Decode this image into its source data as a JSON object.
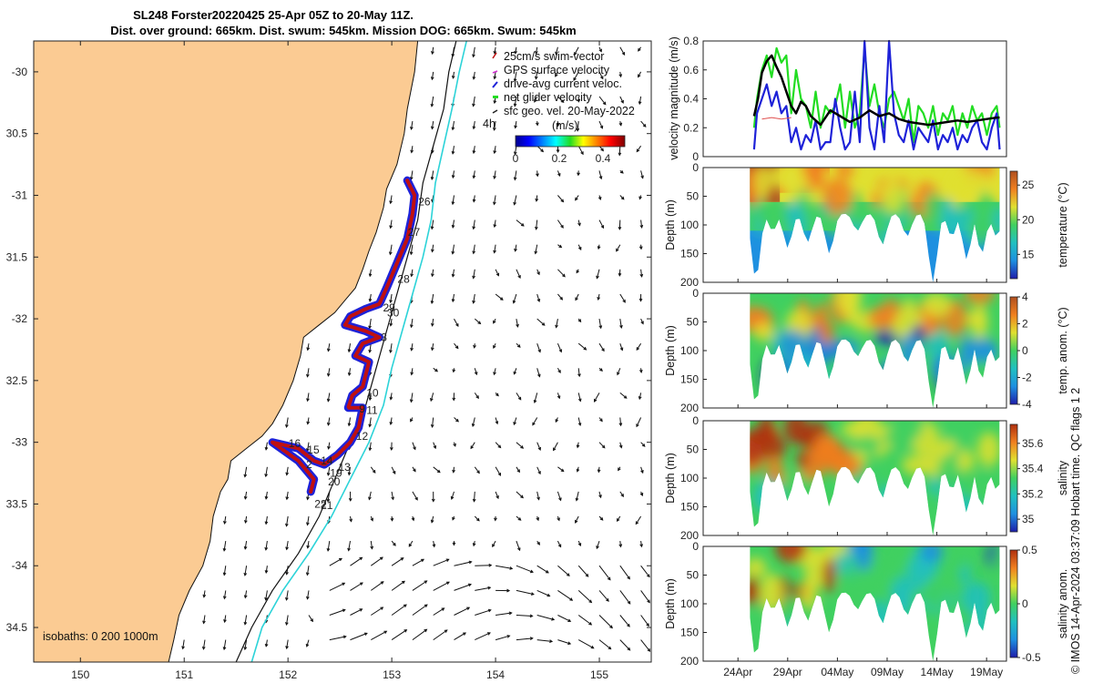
{
  "title_line1": "SL248 Forster20220425 25-Apr 05Z to 20-May 11Z.",
  "title_line2": "Dist. over ground: 665km. Dist. swum: 545km. Mission DOG: 665km. Swum: 545km",
  "side_text": "© IMOS 14-Apr-2024 03:37:09 Hobart time. QC flags 1  2",
  "colors": {
    "land": "#FBCB93",
    "swim_vector": "#C01010",
    "current": "#1E22D8",
    "net": "#22DD22",
    "isobath_1000": "#2CD3D8"
  },
  "chart_data": [
    {
      "type": "map",
      "name": "glider track map",
      "xlim": [
        149.55,
        155.5
      ],
      "ylim": [
        -34.78,
        -29.75
      ],
      "xticks": [
        150,
        151,
        152,
        153,
        154,
        155
      ],
      "yticks": [
        -30,
        -30.5,
        -31,
        -31.5,
        -32,
        -32.5,
        -33,
        -33.5,
        -34,
        -34.5
      ],
      "xtick_labels": [
        "150",
        "151",
        "152",
        "153",
        "154",
        "155"
      ],
      "ytick_labels": [
        "-30",
        "30.5",
        "-31",
        "31.5",
        "-32",
        "32.5",
        "-33",
        "33.5",
        "-34",
        "34.5"
      ],
      "legend": [
        "25cm/s swim-vector",
        "GPS surface velocity",
        "drive-avg current veloc.",
        "net glider velocity",
        "sfc geo. vel. 20-May-2022"
      ],
      "legend_position": "top-right",
      "legend_extra": "4h",
      "colorbar": {
        "label": "(m/s)",
        "ticks": [
          "0",
          "0.2",
          "0.4"
        ],
        "range": [
          0,
          0.5
        ]
      },
      "isobath_label": "isobaths: 0   200  1000m",
      "coast": [
        [
          153.25,
          -29.75
        ],
        [
          153.22,
          -30.0
        ],
        [
          153.15,
          -30.3
        ],
        [
          153.12,
          -30.5
        ],
        [
          153.05,
          -30.75
        ],
        [
          152.95,
          -30.95
        ],
        [
          152.92,
          -31.1
        ],
        [
          152.85,
          -31.3
        ],
        [
          152.78,
          -31.45
        ],
        [
          152.72,
          -31.6
        ],
        [
          152.65,
          -31.75
        ],
        [
          152.55,
          -31.85
        ],
        [
          152.45,
          -31.95
        ],
        [
          152.3,
          -32.05
        ],
        [
          152.15,
          -32.15
        ],
        [
          152.12,
          -32.3
        ],
        [
          152.05,
          -32.5
        ],
        [
          151.95,
          -32.7
        ],
        [
          151.85,
          -32.85
        ],
        [
          151.75,
          -32.95
        ],
        [
          151.6,
          -33.05
        ],
        [
          151.45,
          -33.15
        ],
        [
          151.42,
          -33.3
        ],
        [
          151.35,
          -33.4
        ],
        [
          151.28,
          -33.6
        ],
        [
          151.25,
          -33.8
        ],
        [
          151.18,
          -34.0
        ],
        [
          151.05,
          -34.2
        ],
        [
          150.95,
          -34.4
        ],
        [
          150.9,
          -34.6
        ],
        [
          150.85,
          -34.78
        ]
      ],
      "isobath_200m": [
        [
          153.62,
          -29.75
        ],
        [
          153.55,
          -30.0
        ],
        [
          153.5,
          -30.3
        ],
        [
          153.4,
          -30.6
        ],
        [
          153.3,
          -30.9
        ],
        [
          153.25,
          -31.2
        ],
        [
          153.15,
          -31.5
        ],
        [
          153.05,
          -31.8
        ],
        [
          152.95,
          -32.1
        ],
        [
          152.85,
          -32.4
        ],
        [
          152.75,
          -32.7
        ],
        [
          152.6,
          -33.0
        ],
        [
          152.45,
          -33.3
        ],
        [
          152.3,
          -33.6
        ],
        [
          152.1,
          -33.9
        ],
        [
          151.85,
          -34.2
        ],
        [
          151.65,
          -34.5
        ],
        [
          151.5,
          -34.78
        ]
      ],
      "isobath_1000m": [
        [
          153.72,
          -29.75
        ],
        [
          153.65,
          -30.0
        ],
        [
          153.58,
          -30.3
        ],
        [
          153.5,
          -30.6
        ],
        [
          153.42,
          -30.9
        ],
        [
          153.38,
          -31.2
        ],
        [
          153.3,
          -31.5
        ],
        [
          153.2,
          -31.8
        ],
        [
          153.1,
          -32.1
        ],
        [
          153.0,
          -32.4
        ],
        [
          152.92,
          -32.7
        ],
        [
          152.78,
          -33.0
        ],
        [
          152.6,
          -33.3
        ],
        [
          152.42,
          -33.6
        ],
        [
          152.2,
          -33.9
        ],
        [
          151.95,
          -34.2
        ],
        [
          151.75,
          -34.5
        ],
        [
          151.65,
          -34.78
        ]
      ],
      "track": [
        [
          153.15,
          -30.88
        ],
        [
          153.22,
          -31.0
        ],
        [
          153.2,
          -31.15
        ],
        [
          153.15,
          -31.35
        ],
        [
          153.05,
          -31.55
        ],
        [
          152.95,
          -31.75
        ],
        [
          152.88,
          -31.88
        ],
        [
          152.75,
          -31.92
        ],
        [
          152.6,
          -31.98
        ],
        [
          152.55,
          -32.05
        ],
        [
          152.75,
          -32.1
        ],
        [
          152.88,
          -32.15
        ],
        [
          152.72,
          -32.2
        ],
        [
          152.65,
          -32.3
        ],
        [
          152.78,
          -32.35
        ],
        [
          152.72,
          -32.55
        ],
        [
          152.62,
          -32.62
        ],
        [
          152.58,
          -32.72
        ],
        [
          152.72,
          -32.72
        ],
        [
          152.68,
          -32.88
        ],
        [
          152.6,
          -33.0
        ],
        [
          152.48,
          -33.1
        ],
        [
          152.35,
          -33.18
        ],
        [
          152.25,
          -33.15
        ],
        [
          152.1,
          -33.05
        ],
        [
          151.85,
          -33.0
        ],
        [
          152.1,
          -33.15
        ],
        [
          152.25,
          -33.3
        ],
        [
          152.22,
          -33.4
        ]
      ],
      "track_labels": [
        [
          "26",
          153.22,
          -31.05
        ],
        [
          "27",
          153.12,
          -31.3
        ],
        [
          "28",
          153.02,
          -31.68
        ],
        [
          "29",
          152.88,
          -31.91
        ],
        [
          "30",
          152.92,
          -31.95
        ],
        [
          "3",
          152.86,
          -32.15
        ],
        [
          "10",
          152.72,
          -32.6
        ],
        [
          "9",
          152.65,
          -32.73
        ],
        [
          "11",
          152.72,
          -32.74
        ],
        [
          "12",
          152.62,
          -32.95
        ],
        [
          "13",
          152.45,
          -33.2
        ],
        [
          "14",
          152.28,
          -33.15
        ],
        [
          "15",
          152.15,
          -33.06
        ],
        [
          "16",
          151.97,
          -33.01
        ],
        [
          "2",
          152.14,
          -33.18
        ],
        [
          "19",
          152.37,
          -33.25
        ],
        [
          "20",
          152.35,
          -33.32
        ],
        [
          "21",
          152.28,
          -33.51
        ],
        [
          "22",
          152.22,
          -33.5
        ]
      ]
    },
    {
      "type": "line",
      "name": "velocity magnitude",
      "ylabel": "velocity magnitude (m/s)",
      "ylim": [
        0,
        0.8
      ],
      "yticks": [
        "0",
        "0.2",
        "0.4",
        "0.6",
        "0.8"
      ],
      "xlim": [
        20.0,
        51.0
      ],
      "series": [
        {
          "color": "#22DD22",
          "x": [
            25.2,
            25.5,
            26,
            26.5,
            27,
            27.5,
            28,
            28.5,
            29,
            29.5,
            30,
            30.5,
            31,
            31.5,
            32,
            32.5,
            33,
            33.5,
            34,
            34.5,
            35,
            35.5,
            36,
            36.5,
            37,
            37.5,
            38,
            38.5,
            39,
            39.5,
            40,
            40.5,
            41,
            41.5,
            42,
            42.5,
            43,
            43.5,
            44,
            44.5,
            45,
            45.5,
            46,
            46.5,
            47,
            47.5,
            48,
            48.5,
            49,
            49.5,
            50,
            50.3
          ],
          "y": [
            0.2,
            0.4,
            0.6,
            0.7,
            0.55,
            0.75,
            0.65,
            0.7,
            0.3,
            0.6,
            0.4,
            0.35,
            0.2,
            0.45,
            0.2,
            0.35,
            0.3,
            0.35,
            0.5,
            0.2,
            0.45,
            0.2,
            0.3,
            0.75,
            0.35,
            0.5,
            0.3,
            0.2,
            0.4,
            0.45,
            0.35,
            0.25,
            0.4,
            0.1,
            0.35,
            0.3,
            0.2,
            0.35,
            0.15,
            0.3,
            0.25,
            0.35,
            0.15,
            0.3,
            0.2,
            0.35,
            0.25,
            0.3,
            0.15,
            0.3,
            0.35,
            0.2
          ]
        },
        {
          "color": "#1E22D8",
          "x": [
            25.2,
            25.5,
            26,
            26.5,
            27,
            27.5,
            28,
            28.5,
            29,
            29.5,
            30,
            30.5,
            31,
            31.5,
            32,
            32.5,
            33,
            33.5,
            34,
            34.5,
            35,
            35.5,
            36,
            36.5,
            37,
            37.5,
            38,
            38.5,
            39,
            39.5,
            40,
            40.5,
            41,
            41.5,
            42,
            42.5,
            43,
            43.5,
            44,
            44.5,
            45,
            45.5,
            46,
            46.5,
            47,
            47.5,
            48,
            48.5,
            49,
            49.5,
            50,
            50.3
          ],
          "y": [
            0.05,
            0.3,
            0.4,
            0.5,
            0.35,
            0.45,
            0.3,
            0.35,
            0.1,
            0.2,
            0.05,
            0.15,
            0.1,
            0.25,
            0.05,
            0.1,
            0.1,
            0.4,
            0.2,
            0.05,
            0.1,
            0.45,
            0.1,
            0.8,
            0.2,
            0.05,
            0.35,
            0.1,
            0.8,
            0.3,
            0.15,
            0.1,
            0.25,
            0.05,
            0.2,
            0.15,
            0.1,
            0.25,
            0.05,
            0.15,
            0.1,
            0.2,
            0.05,
            0.15,
            0.1,
            0.2,
            0.25,
            0.1,
            0.05,
            0.2,
            0.3,
            0.05
          ]
        },
        {
          "color": "#000000",
          "x": [
            25.2,
            25.6,
            26,
            26.5,
            27,
            27.5,
            28,
            28.5,
            29,
            29.5,
            30,
            30.5,
            31,
            32,
            33,
            34,
            35,
            36,
            37,
            38,
            39,
            40,
            41,
            42,
            43,
            44,
            45,
            46,
            47,
            48,
            49,
            50,
            50.3
          ],
          "y": [
            0.28,
            0.4,
            0.58,
            0.66,
            0.7,
            0.62,
            0.55,
            0.45,
            0.35,
            0.3,
            0.38,
            0.35,
            0.28,
            0.22,
            0.32,
            0.28,
            0.24,
            0.27,
            0.32,
            0.28,
            0.3,
            0.26,
            0.24,
            0.23,
            0.22,
            0.23,
            0.24,
            0.25,
            0.24,
            0.25,
            0.26,
            0.27,
            0.27
          ]
        },
        {
          "color": "#E05050",
          "x": [
            26,
            27,
            28,
            29
          ],
          "y": [
            0.26,
            0.27,
            0.26,
            0.27
          ]
        }
      ]
    },
    {
      "type": "heatmap",
      "name": "temperature",
      "ylabel": "Depth (m)",
      "colorbar_label": "temperature (°C)",
      "colorbar_ticks": [
        "15",
        "20",
        "25"
      ],
      "clim": [
        11.5,
        27
      ],
      "yticks": [
        "0",
        "50",
        "100",
        "150",
        "200"
      ]
    },
    {
      "type": "heatmap",
      "name": "temp. anom.",
      "ylabel": "Depth (m)",
      "colorbar_label": "temp. anom. (°C)",
      "colorbar_ticks": [
        "-4",
        "-2",
        "0",
        "2",
        "4"
      ],
      "clim": [
        -4,
        4
      ],
      "yticks": [
        "0",
        "50",
        "100",
        "150",
        "200"
      ]
    },
    {
      "type": "heatmap",
      "name": "salinity",
      "ylabel": "Depth (m)",
      "colorbar_label": "salinity",
      "colorbar_ticks": [
        "35",
        "35.2",
        "35.4",
        "35.6"
      ],
      "clim": [
        34.9,
        35.75
      ],
      "yticks": [
        "0",
        "50",
        "100",
        "150",
        "200"
      ]
    },
    {
      "type": "heatmap",
      "name": "salinity anom.",
      "ylabel": "Depth (m)",
      "colorbar_label": "salinity anom.",
      "colorbar_ticks": [
        "-0.5",
        "0",
        "0.5"
      ],
      "clim": [
        -0.5,
        0.5
      ],
      "yticks": [
        "0",
        "50",
        "100",
        "150",
        "200"
      ],
      "xticks": [
        "24Apr",
        "29Apr",
        "04May",
        "09May",
        "14May",
        "19May"
      ]
    }
  ]
}
